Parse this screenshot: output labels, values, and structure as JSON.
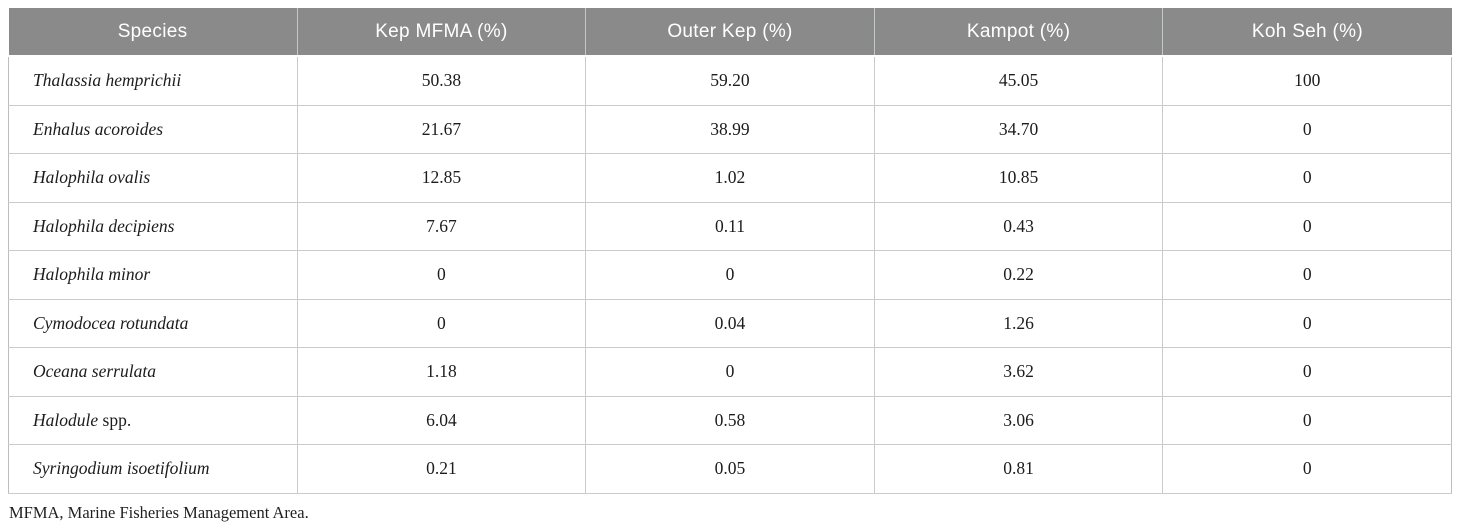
{
  "colors": {
    "header_background": "#8a8a8a",
    "header_text": "#ffffff",
    "body_text": "#1c1c1c",
    "grid_line": "#cbcbcb"
  },
  "table": {
    "headers": [
      "Species",
      "Kep MFMA (%)",
      "Outer Kep (%)",
      "Kampot (%)",
      "Koh Seh (%)"
    ],
    "rows": [
      {
        "species_italic": "Thalassia hemprichii",
        "species_regular": "",
        "values": [
          "50.38",
          "59.20",
          "45.05",
          "100"
        ]
      },
      {
        "species_italic": "Enhalus acoroides",
        "species_regular": "",
        "values": [
          "21.67",
          "38.99",
          "34.70",
          "0"
        ]
      },
      {
        "species_italic": "Halophila ovalis",
        "species_regular": "",
        "values": [
          "12.85",
          "1.02",
          "10.85",
          "0"
        ]
      },
      {
        "species_italic": "Halophila decipiens",
        "species_regular": "",
        "values": [
          "7.67",
          "0.11",
          "0.43",
          "0"
        ]
      },
      {
        "species_italic": "Halophila minor",
        "species_regular": "",
        "values": [
          "0",
          "0",
          "0.22",
          "0"
        ]
      },
      {
        "species_italic": "Cymodocea rotundata",
        "species_regular": "",
        "values": [
          "0",
          "0.04",
          "1.26",
          "0"
        ]
      },
      {
        "species_italic": "Oceana serrulata",
        "species_regular": "",
        "values": [
          "1.18",
          "0",
          "3.62",
          "0"
        ]
      },
      {
        "species_italic": "Halodule",
        "species_regular": " spp.",
        "values": [
          "6.04",
          "0.58",
          "3.06",
          "0"
        ]
      },
      {
        "species_italic": "Syringodium isoetifolium",
        "species_regular": "",
        "values": [
          "0.21",
          "0.05",
          "0.81",
          "0"
        ]
      }
    ],
    "footnote": "MFMA, Marine Fisheries Management Area."
  }
}
